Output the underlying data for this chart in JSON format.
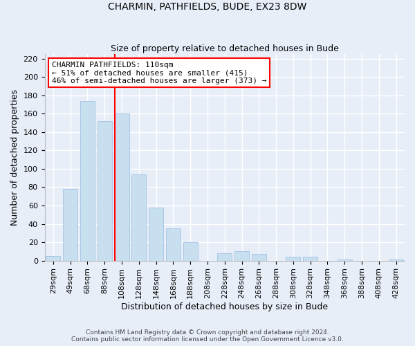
{
  "title": "CHARMIN, PATHFIELDS, BUDE, EX23 8DW",
  "subtitle": "Size of property relative to detached houses in Bude",
  "xlabel": "Distribution of detached houses by size in Bude",
  "ylabel": "Number of detached properties",
  "bar_labels": [
    "29sqm",
    "49sqm",
    "68sqm",
    "88sqm",
    "108sqm",
    "128sqm",
    "148sqm",
    "168sqm",
    "188sqm",
    "208sqm",
    "228sqm",
    "248sqm",
    "268sqm",
    "288sqm",
    "308sqm",
    "328sqm",
    "348sqm",
    "368sqm",
    "388sqm",
    "408sqm",
    "428sqm"
  ],
  "bar_values": [
    5,
    78,
    174,
    152,
    160,
    94,
    58,
    35,
    20,
    0,
    8,
    10,
    7,
    0,
    4,
    4,
    0,
    1,
    0,
    0,
    1
  ],
  "bar_color": "#c8dff0",
  "bar_edge_color": "#a8c8e8",
  "vline_color": "red",
  "vline_x_index": 4,
  "annotation_title": "CHARMIN PATHFIELDS: 110sqm",
  "annotation_line1": "← 51% of detached houses are smaller (415)",
  "annotation_line2": "46% of semi-detached houses are larger (373) →",
  "box_facecolor": "white",
  "box_edgecolor": "red",
  "ylim": [
    0,
    225
  ],
  "yticks": [
    0,
    20,
    40,
    60,
    80,
    100,
    120,
    140,
    160,
    180,
    200,
    220
  ],
  "footer1": "Contains HM Land Registry data © Crown copyright and database right 2024.",
  "footer2": "Contains public sector information licensed under the Open Government Licence v3.0.",
  "bg_color": "#e8eef8",
  "grid_color": "white",
  "title_fontsize": 10,
  "subtitle_fontsize": 9,
  "axis_label_fontsize": 9,
  "tick_fontsize": 8,
  "annotation_fontsize": 8,
  "footer_fontsize": 6.5
}
